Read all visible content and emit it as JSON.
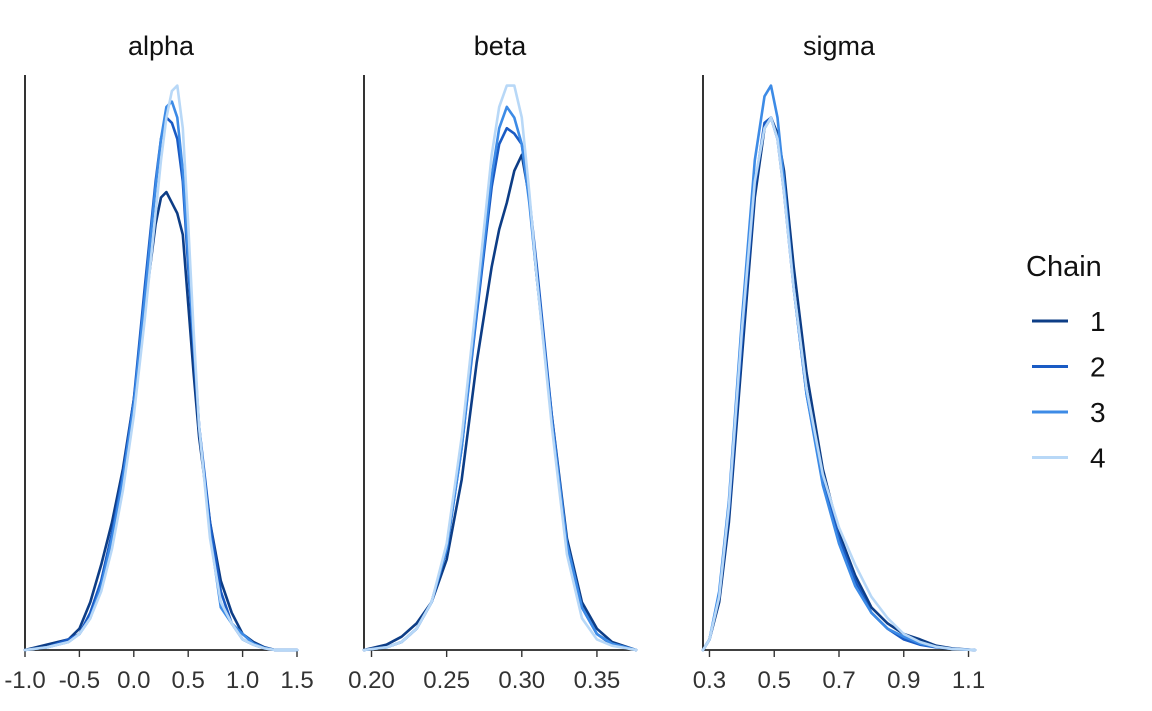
{
  "chart_data": [
    {
      "type": "line",
      "title": "alpha",
      "xlim": [
        -1.0,
        1.5
      ],
      "ylim": [
        0,
        1.08
      ],
      "x_ticks": [
        -1.0,
        -0.5,
        0.0,
        0.5,
        1.0,
        1.5
      ],
      "x_tick_labels": [
        "-1.0",
        "-0.5",
        "0.0",
        "0.5",
        "1.0",
        "1.5"
      ],
      "series": [
        {
          "name": "1",
          "x": [
            -1.0,
            -0.8,
            -0.6,
            -0.5,
            -0.4,
            -0.3,
            -0.2,
            -0.1,
            0.0,
            0.1,
            0.2,
            0.25,
            0.3,
            0.35,
            0.4,
            0.45,
            0.5,
            0.55,
            0.6,
            0.7,
            0.8,
            0.9,
            1.0,
            1.1,
            1.2,
            1.3,
            1.5
          ],
          "y": [
            0.0,
            0.01,
            0.02,
            0.04,
            0.09,
            0.16,
            0.24,
            0.34,
            0.47,
            0.64,
            0.8,
            0.85,
            0.86,
            0.84,
            0.82,
            0.78,
            0.65,
            0.52,
            0.4,
            0.24,
            0.13,
            0.07,
            0.03,
            0.015,
            0.005,
            0.0,
            0.0
          ]
        },
        {
          "name": "2",
          "x": [
            -1.0,
            -0.8,
            -0.6,
            -0.5,
            -0.4,
            -0.3,
            -0.2,
            -0.1,
            0.0,
            0.1,
            0.2,
            0.25,
            0.3,
            0.35,
            0.4,
            0.45,
            0.5,
            0.55,
            0.6,
            0.7,
            0.8,
            0.9,
            1.0,
            1.1,
            1.2,
            1.3,
            1.5
          ],
          "y": [
            0.0,
            0.005,
            0.02,
            0.03,
            0.07,
            0.13,
            0.22,
            0.33,
            0.47,
            0.68,
            0.88,
            0.96,
            1.0,
            0.99,
            0.96,
            0.88,
            0.72,
            0.57,
            0.42,
            0.24,
            0.11,
            0.05,
            0.02,
            0.01,
            0.003,
            0.0,
            0.0
          ]
        },
        {
          "name": "3",
          "x": [
            -1.0,
            -0.8,
            -0.6,
            -0.5,
            -0.4,
            -0.3,
            -0.2,
            -0.1,
            0.0,
            0.1,
            0.2,
            0.25,
            0.3,
            0.35,
            0.4,
            0.45,
            0.5,
            0.55,
            0.6,
            0.7,
            0.8,
            0.9,
            1.0,
            1.1,
            1.2,
            1.3,
            1.5
          ],
          "y": [
            0.0,
            0.005,
            0.015,
            0.03,
            0.06,
            0.12,
            0.21,
            0.32,
            0.46,
            0.66,
            0.87,
            0.96,
            1.02,
            1.03,
            1.0,
            0.9,
            0.74,
            0.58,
            0.42,
            0.22,
            0.08,
            0.05,
            0.03,
            0.012,
            0.004,
            0.0,
            0.0
          ]
        },
        {
          "name": "4",
          "x": [
            -1.0,
            -0.8,
            -0.6,
            -0.5,
            -0.4,
            -0.3,
            -0.2,
            -0.1,
            0.0,
            0.1,
            0.2,
            0.25,
            0.3,
            0.35,
            0.4,
            0.45,
            0.5,
            0.55,
            0.6,
            0.7,
            0.8,
            0.9,
            1.0,
            1.1,
            1.2,
            1.3,
            1.5
          ],
          "y": [
            0.0,
            0.005,
            0.015,
            0.03,
            0.06,
            0.11,
            0.19,
            0.3,
            0.44,
            0.62,
            0.82,
            0.92,
            1.0,
            1.05,
            1.06,
            0.98,
            0.8,
            0.6,
            0.42,
            0.21,
            0.09,
            0.05,
            0.02,
            0.01,
            0.003,
            0.0,
            0.0
          ]
        }
      ]
    },
    {
      "type": "line",
      "title": "beta",
      "xlim": [
        0.195,
        0.376
      ],
      "ylim": [
        0,
        1.08
      ],
      "x_ticks": [
        0.2,
        0.25,
        0.3,
        0.35
      ],
      "x_tick_labels": [
        "0.20",
        "0.25",
        "0.30",
        "0.35"
      ],
      "series": [
        {
          "name": "1",
          "x": [
            0.195,
            0.21,
            0.22,
            0.23,
            0.24,
            0.25,
            0.26,
            0.27,
            0.28,
            0.285,
            0.29,
            0.295,
            0.3,
            0.305,
            0.31,
            0.32,
            0.33,
            0.34,
            0.35,
            0.36,
            0.376
          ],
          "y": [
            0.0,
            0.01,
            0.025,
            0.05,
            0.09,
            0.17,
            0.32,
            0.54,
            0.72,
            0.79,
            0.84,
            0.9,
            0.93,
            0.85,
            0.7,
            0.44,
            0.21,
            0.09,
            0.04,
            0.015,
            0.0
          ]
        },
        {
          "name": "2",
          "x": [
            0.195,
            0.21,
            0.22,
            0.23,
            0.24,
            0.25,
            0.26,
            0.27,
            0.28,
            0.285,
            0.29,
            0.295,
            0.3,
            0.305,
            0.31,
            0.32,
            0.33,
            0.34,
            0.35,
            0.36,
            0.376
          ],
          "y": [
            0.0,
            0.005,
            0.015,
            0.04,
            0.09,
            0.19,
            0.38,
            0.63,
            0.87,
            0.95,
            0.98,
            0.97,
            0.95,
            0.85,
            0.72,
            0.44,
            0.2,
            0.08,
            0.03,
            0.01,
            0.0
          ]
        },
        {
          "name": "3",
          "x": [
            0.195,
            0.21,
            0.22,
            0.23,
            0.24,
            0.25,
            0.26,
            0.27,
            0.28,
            0.285,
            0.29,
            0.295,
            0.3,
            0.305,
            0.31,
            0.32,
            0.33,
            0.34,
            0.35,
            0.36,
            0.376
          ],
          "y": [
            0.0,
            0.005,
            0.015,
            0.04,
            0.09,
            0.19,
            0.38,
            0.64,
            0.89,
            0.98,
            1.02,
            1.0,
            0.95,
            0.84,
            0.7,
            0.43,
            0.2,
            0.08,
            0.03,
            0.012,
            0.0
          ]
        },
        {
          "name": "4",
          "x": [
            0.195,
            0.21,
            0.22,
            0.23,
            0.24,
            0.25,
            0.26,
            0.27,
            0.28,
            0.285,
            0.29,
            0.295,
            0.3,
            0.305,
            0.31,
            0.32,
            0.33,
            0.34,
            0.35,
            0.36,
            0.376
          ],
          "y": [
            0.0,
            0.005,
            0.015,
            0.04,
            0.09,
            0.2,
            0.4,
            0.66,
            0.93,
            1.02,
            1.06,
            1.06,
            1.0,
            0.86,
            0.7,
            0.42,
            0.18,
            0.06,
            0.02,
            0.008,
            0.0
          ]
        }
      ]
    },
    {
      "type": "line",
      "title": "sigma",
      "xlim": [
        0.28,
        1.12
      ],
      "ylim": [
        0,
        1.08
      ],
      "x_ticks": [
        0.3,
        0.5,
        0.7,
        0.9,
        1.1
      ],
      "x_tick_labels": [
        "0.3",
        "0.5",
        "0.7",
        "0.9",
        "1.1"
      ],
      "series": [
        {
          "name": "1",
          "x": [
            0.28,
            0.3,
            0.33,
            0.36,
            0.4,
            0.44,
            0.47,
            0.49,
            0.51,
            0.53,
            0.56,
            0.6,
            0.65,
            0.7,
            0.75,
            0.8,
            0.85,
            0.9,
            0.95,
            1.0,
            1.05,
            1.12
          ],
          "y": [
            0.0,
            0.02,
            0.09,
            0.24,
            0.55,
            0.85,
            0.98,
            1.0,
            0.97,
            0.9,
            0.72,
            0.52,
            0.34,
            0.22,
            0.14,
            0.08,
            0.05,
            0.03,
            0.02,
            0.008,
            0.003,
            0.0
          ]
        },
        {
          "name": "2",
          "x": [
            0.28,
            0.3,
            0.33,
            0.36,
            0.4,
            0.44,
            0.47,
            0.49,
            0.51,
            0.53,
            0.56,
            0.6,
            0.65,
            0.7,
            0.75,
            0.8,
            0.85,
            0.9,
            0.95,
            1.0,
            1.05,
            1.12
          ],
          "y": [
            0.0,
            0.02,
            0.1,
            0.26,
            0.58,
            0.87,
            0.99,
            1.0,
            0.96,
            0.86,
            0.68,
            0.48,
            0.32,
            0.21,
            0.13,
            0.07,
            0.04,
            0.02,
            0.01,
            0.005,
            0.002,
            0.0
          ]
        },
        {
          "name": "3",
          "x": [
            0.28,
            0.3,
            0.33,
            0.36,
            0.4,
            0.44,
            0.47,
            0.49,
            0.51,
            0.53,
            0.56,
            0.6,
            0.65,
            0.7,
            0.75,
            0.8,
            0.85,
            0.9,
            0.95,
            1.0,
            1.05,
            1.12
          ],
          "y": [
            0.0,
            0.02,
            0.11,
            0.28,
            0.62,
            0.92,
            1.04,
            1.06,
            1.0,
            0.88,
            0.68,
            0.48,
            0.31,
            0.2,
            0.12,
            0.07,
            0.04,
            0.025,
            0.012,
            0.006,
            0.002,
            0.0
          ]
        },
        {
          "name": "4",
          "x": [
            0.28,
            0.3,
            0.33,
            0.36,
            0.4,
            0.44,
            0.47,
            0.49,
            0.51,
            0.53,
            0.56,
            0.6,
            0.65,
            0.7,
            0.75,
            0.8,
            0.85,
            0.9,
            0.95,
            1.0,
            1.05,
            1.12
          ],
          "y": [
            0.0,
            0.02,
            0.1,
            0.27,
            0.6,
            0.88,
            0.98,
            1.0,
            0.96,
            0.86,
            0.68,
            0.49,
            0.33,
            0.23,
            0.16,
            0.1,
            0.06,
            0.03,
            0.015,
            0.006,
            0.002,
            0.0
          ]
        }
      ]
    }
  ],
  "legend": {
    "title": "Chain",
    "items": [
      "1",
      "2",
      "3",
      "4"
    ],
    "placement": "right"
  },
  "colors": {
    "chain_1": "#0d3d86",
    "chain_2": "#1a5bc4",
    "chain_3": "#3d8be6",
    "chain_4": "#b8d8f7"
  }
}
